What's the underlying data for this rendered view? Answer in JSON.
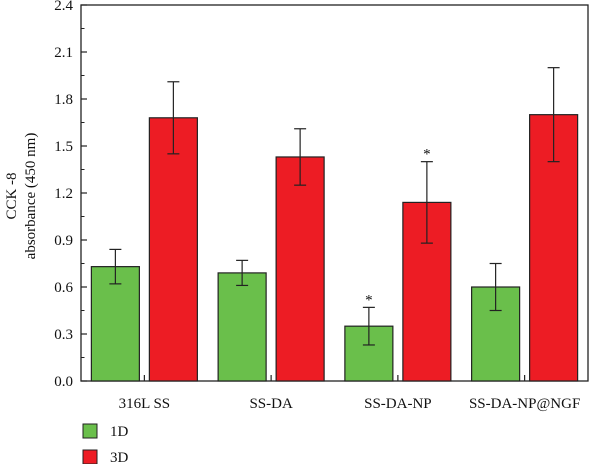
{
  "chart_data": {
    "type": "bar",
    "ylabel": [
      "CCK -8",
      "absorbance (450 nm)"
    ],
    "ylim": [
      0,
      2.4
    ],
    "yticks": [
      "0.0",
      "0.3",
      "0.6",
      "0.9",
      "1.2",
      "1.5",
      "1.8",
      "2.1",
      "2.4"
    ],
    "categories": [
      "316L SS",
      "SS-DA",
      "SS-DA-NP",
      "SS-DA-NP@NGF"
    ],
    "series": [
      {
        "name": "1D",
        "color": "#6abf4b",
        "values": [
          0.73,
          0.69,
          0.35,
          0.6
        ],
        "errors": [
          0.11,
          0.08,
          0.12,
          0.15
        ],
        "significant": [
          false,
          false,
          true,
          false
        ]
      },
      {
        "name": "3D",
        "color": "#ed1c24",
        "values": [
          1.68,
          1.43,
          1.14,
          1.7
        ],
        "errors": [
          0.23,
          0.18,
          0.26,
          0.3
        ],
        "significant": [
          false,
          false,
          true,
          false
        ]
      }
    ],
    "significance_mark": "*",
    "legend_position": "bottom-left",
    "grid": false
  }
}
